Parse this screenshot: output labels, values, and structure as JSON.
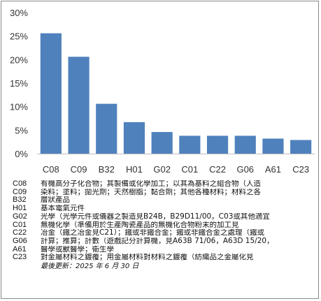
{
  "chart_data": {
    "type": "bar",
    "categories": [
      "C08",
      "C09",
      "B32",
      "H01",
      "G02",
      "C01",
      "C22",
      "G06",
      "A61",
      "C23"
    ],
    "values": [
      25.6,
      20.6,
      10.6,
      6.7,
      4.6,
      3.8,
      3.8,
      3.8,
      3.2,
      2.9
    ],
    "ylim": [
      0,
      30
    ],
    "yticks": [
      0,
      5,
      10,
      15,
      20,
      25,
      30
    ],
    "ytick_labels": [
      "0%",
      "5%",
      "10%",
      "15%",
      "20%",
      "25%",
      "30%"
    ],
    "bar_color": "#4f81bd",
    "grid": false,
    "legend_placement": "bottom"
  },
  "legend": [
    {
      "code": "C08",
      "desc": "有機高分子化合物；其製備或化學加工；以其為基料之組合物（人造"
    },
    {
      "code": "C09",
      "desc": "染料；塗料；拋光劑；天然樹脂；黏合劑；其他各種材料；材料之各"
    },
    {
      "code": "B32",
      "desc": "層狀產品"
    },
    {
      "code": "H01",
      "desc": "基本電氣元件"
    },
    {
      "code": "G02",
      "desc": "光學（光學元件或儀器之製造見B24B，B29D11/00，C03或其他適宜"
    },
    {
      "code": "C01",
      "desc": "無機化學（準備用於生產陶瓷產品的無機化合物粉末的加工見"
    },
    {
      "code": "C22",
      "desc": "冶金（鐵之冶金見C21）；鐵或非鐵合金；鐵或非鐵合金之處理（鐵或"
    },
    {
      "code": "G06",
      "desc": "計算；推算；計數（遊戲記分計算機，見A63B 71/06，A63D 15/20，"
    },
    {
      "code": "A61",
      "desc": "醫學或獸醫學；衛生學"
    },
    {
      "code": "C23",
      "desc": "對金屬材料之鍍覆；用金屬材料對材料之鍍覆（紡織品之金屬化見"
    }
  ],
  "last_updated": "最後更新：2025 年 6 月 30 日"
}
